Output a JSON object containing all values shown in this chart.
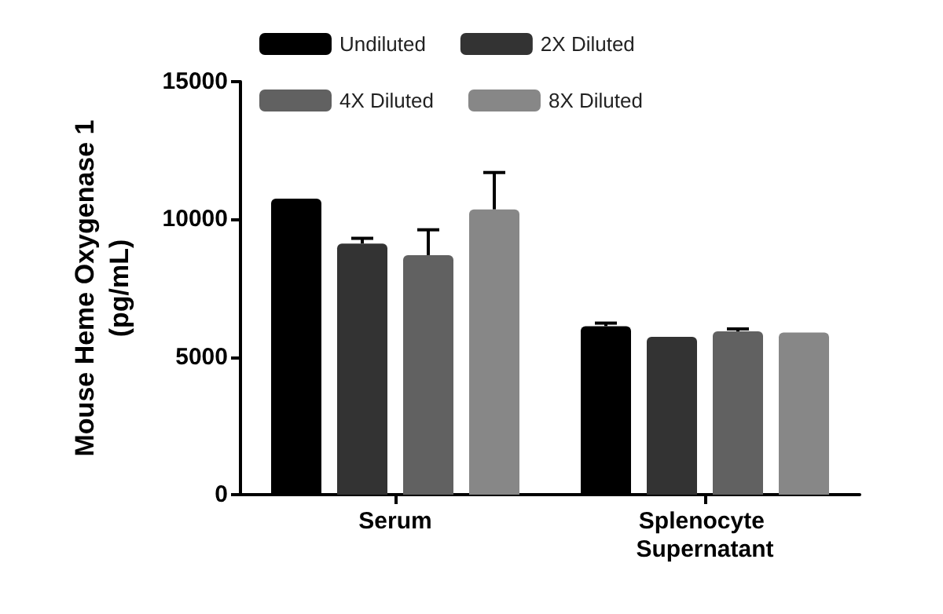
{
  "chart_data": {
    "type": "bar",
    "ylabel": "Mouse Heme Oxygenase 1\n(pg/mL)",
    "categories": [
      "Serum",
      "Splenocyte Supernatant"
    ],
    "series": [
      {
        "name": "Undiluted",
        "color": "#000000",
        "values": [
          10750,
          6120
        ],
        "errors": [
          null,
          [
            6120,
            6230
          ]
        ]
      },
      {
        "name": "2X Diluted",
        "color": "#333333",
        "values": [
          9120,
          5730
        ],
        "errors": [
          [
            9120,
            9310
          ],
          null
        ]
      },
      {
        "name": "4X Diluted",
        "color": "#616161",
        "values": [
          8700,
          5930
        ],
        "errors": [
          [
            8700,
            9620
          ],
          [
            5930,
            6020
          ]
        ]
      },
      {
        "name": "8X Diluted",
        "color": "#878787",
        "values": [
          10360,
          5890
        ],
        "errors": [
          [
            10360,
            11700
          ],
          null
        ]
      }
    ],
    "ylim": [
      0,
      15000
    ],
    "yticks": [
      0,
      5000,
      10000,
      15000
    ],
    "grid": false,
    "legend": "top"
  }
}
